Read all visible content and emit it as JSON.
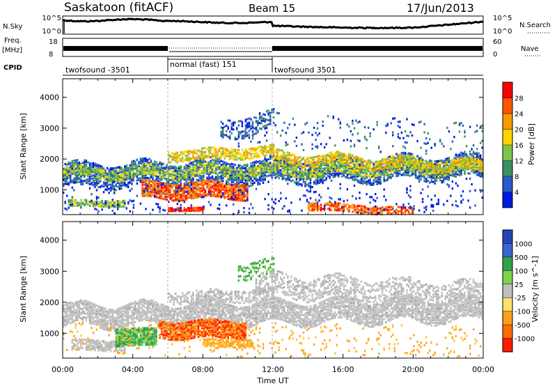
{
  "header": {
    "radar": "Saskatoon (fitACF)",
    "beam": "Beam 15",
    "date": "17/Jun/2013"
  },
  "summary_panels": {
    "nsky": {
      "label": "N.Sky",
      "left_ticks": [
        "10^5",
        "10^0"
      ],
      "right_ticks": [
        "10^5",
        "10^0"
      ],
      "right_label": "N.Search"
    },
    "freq": {
      "label_line1": "Freq.",
      "label_line2": "[MHz]",
      "left_ticks": [
        "18",
        "8"
      ],
      "right_ticks": [
        "60",
        "0"
      ],
      "right_label": "Nave"
    },
    "cpid": {
      "label": "CPID",
      "segments": [
        {
          "label": "twofsound -3501",
          "start_hour": 0,
          "end_hour": 6
        },
        {
          "label": "normal (fast) 151",
          "start_hour": 6,
          "end_hour": 12
        },
        {
          "label": "twofsound 3501",
          "start_hour": 12,
          "end_hour": 24
        }
      ]
    }
  },
  "colors": {
    "power_scale": [
      "#0019e0",
      "#2a59c8",
      "#3c8f63",
      "#7fc34a",
      "#ffd400",
      "#f29a00",
      "#ff5500",
      "#ff0000"
    ],
    "velocity_scale": [
      "#2845b5",
      "#3a63d0",
      "#33a04a",
      "#7fd44e",
      "#bfbfbf",
      "#ffe06a",
      "#ff9e1a",
      "#ff6b00",
      "#ff1a00"
    ]
  },
  "chart_data": [
    {
      "type": "heatmap",
      "name": "power",
      "xlabel": "",
      "ylabel": "Slant Range [km]",
      "xlim": [
        0,
        24
      ],
      "ylim": [
        200,
        4600
      ],
      "yticks": [
        1000,
        2000,
        3000,
        4000
      ],
      "colorbar": {
        "label": "Power [dB]",
        "ticks": [
          "4",
          "8",
          "12",
          "16",
          "20",
          "24",
          "28"
        ],
        "range": [
          0,
          30
        ]
      },
      "notes": "Scatter mostly between 1000-2500 km; strongest echoes (~25-30 dB) near 600-1000 km between 06:00 and 10:00 and near 300-600 km between 14:00 and 20:00."
    },
    {
      "type": "heatmap",
      "name": "velocity",
      "xlabel": "Time UT",
      "ylabel": "Slant Range [km]",
      "xlim": [
        0,
        24
      ],
      "ylim": [
        200,
        4600
      ],
      "yticks": [
        1000,
        2000,
        3000,
        4000
      ],
      "xticks": [
        "00:00",
        "04:00",
        "08:00",
        "12:00",
        "16:00",
        "20:00",
        "00:00"
      ],
      "colorbar": {
        "label": "Velocity [m s^-1]",
        "ticks": [
          "1000",
          "500",
          "100",
          "25",
          "-25",
          "-100",
          "-500",
          "-1000"
        ]
      },
      "notes": "Mostly low-velocity (grey, |v|<25) ground scatter; green (positive) patch near 03:00-05:00 at 700-1200 km; orange/red (negative) patch 06:00-10:30 at 800-1600 km."
    }
  ]
}
